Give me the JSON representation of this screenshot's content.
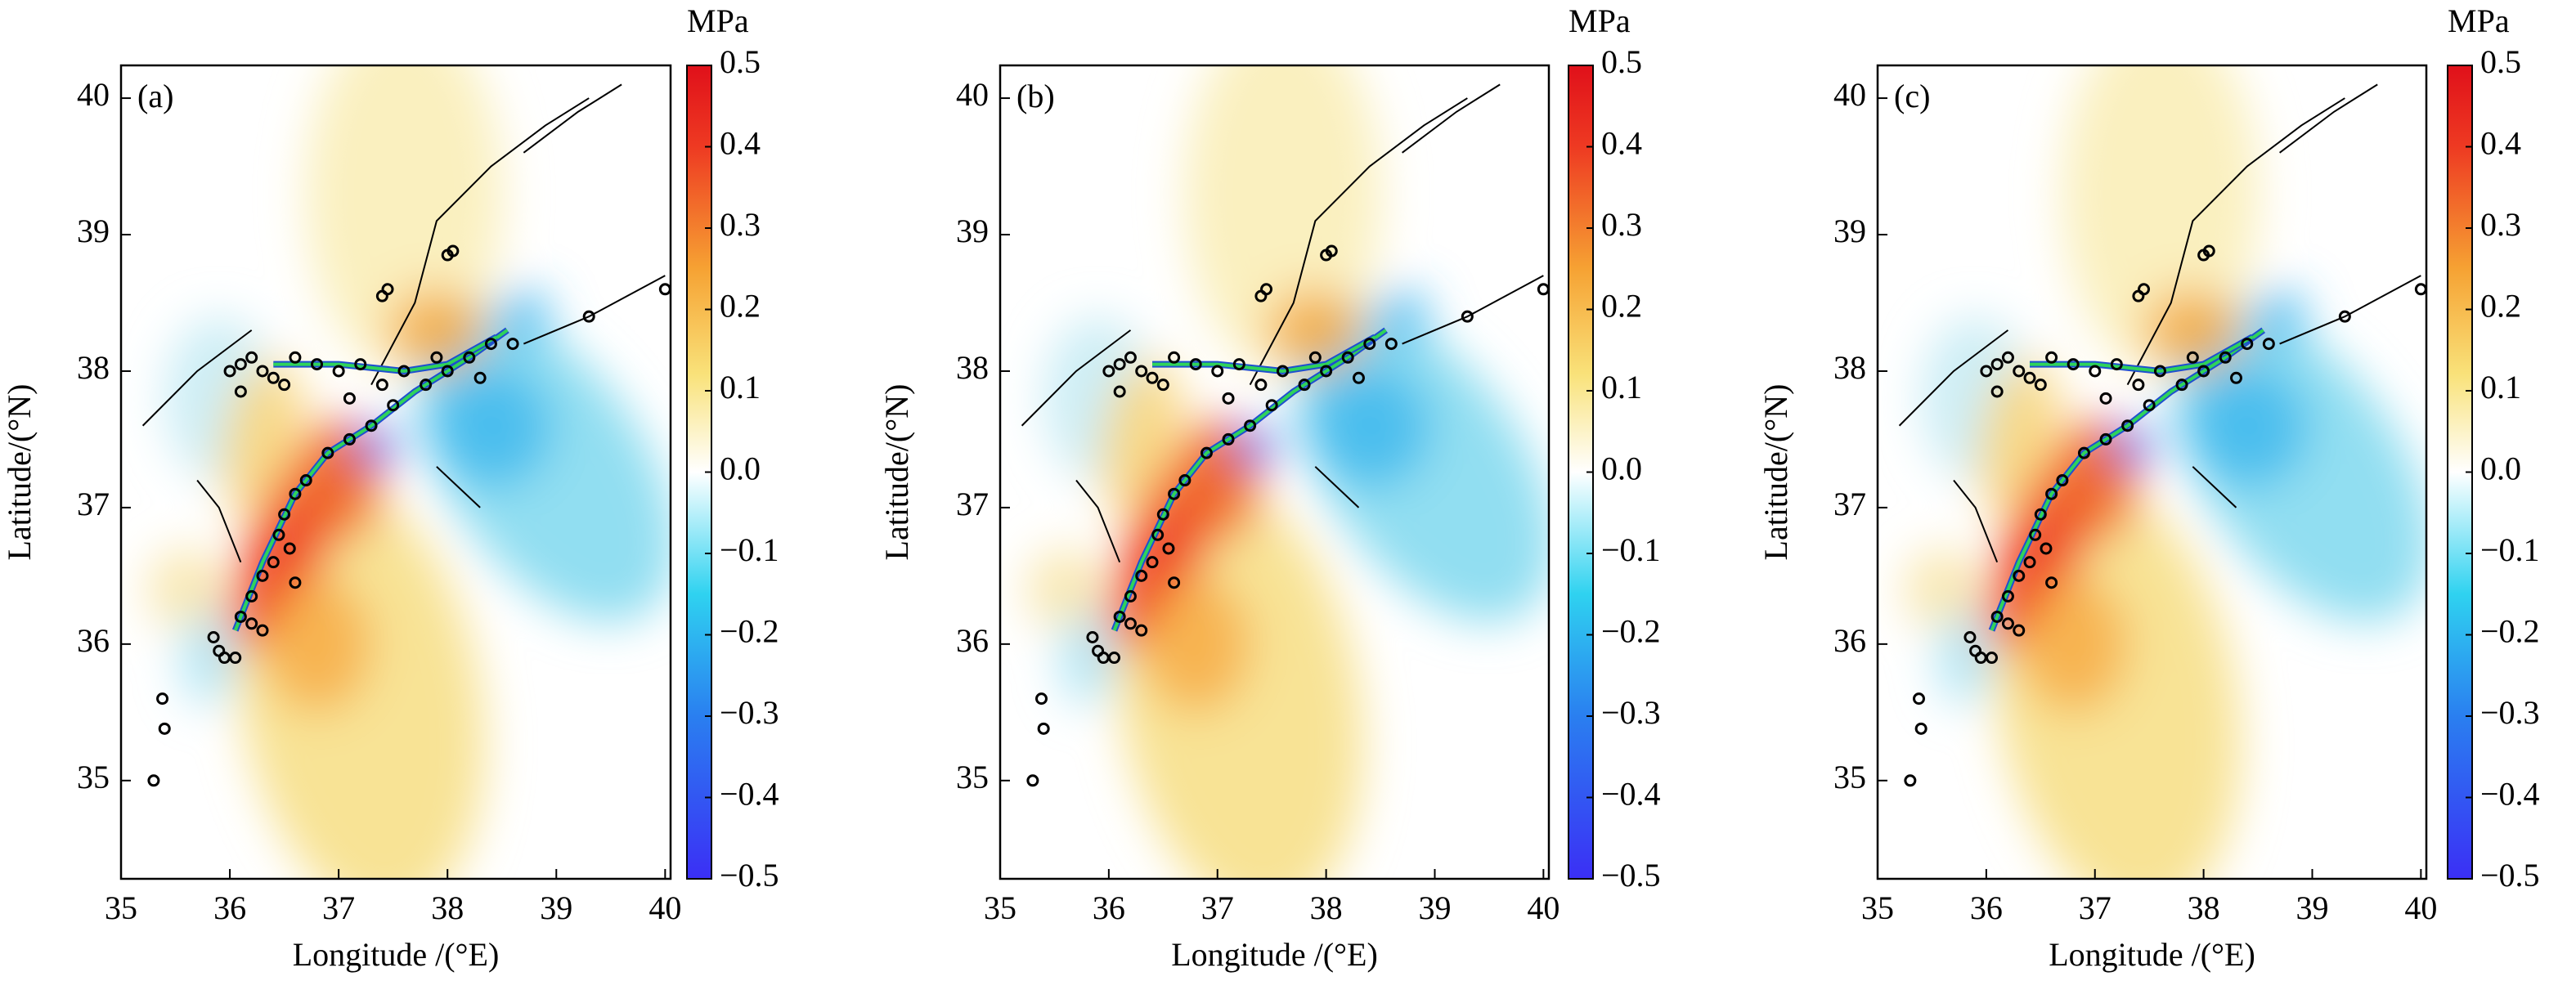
{
  "chart_data": [
    {
      "type": "scatter",
      "panel_label": "(a)",
      "xlabel": "Longitude /(°E)",
      "ylabel": "Latitude/(°N)",
      "xlim": [
        35,
        40.05
      ],
      "ylim": [
        34.28,
        40.24
      ],
      "xticks": [
        35,
        36,
        37,
        38,
        39,
        40
      ],
      "yticks": [
        35,
        36,
        37,
        38,
        39,
        40
      ],
      "marker_color": "#000000",
      "x": [
        35.3,
        35.4,
        35.38,
        35.9,
        35.85,
        36.05,
        36.1,
        36.2,
        36.3,
        36.4,
        36.45,
        36.5,
        36.6,
        36.55,
        36.7,
        36.9,
        37.1,
        37.3,
        37.5,
        37.8,
        38.0,
        38.2,
        38.4,
        38.6,
        38.3,
        36.0,
        36.1,
        36.2,
        36.3,
        36.4,
        36.6,
        36.8,
        37.0,
        37.2,
        37.4,
        37.6,
        37.9,
        38.0,
        38.05,
        37.45,
        37.4,
        39.3,
        40.0,
        36.2,
        36.3,
        36.6,
        35.95,
        36.1,
        36.5,
        37.1
      ],
      "y": [
        35.0,
        35.38,
        35.6,
        35.95,
        36.05,
        35.9,
        36.2,
        36.35,
        36.5,
        36.6,
        36.8,
        36.95,
        37.1,
        36.7,
        37.2,
        37.4,
        37.5,
        37.6,
        37.75,
        37.9,
        38.0,
        38.1,
        38.2,
        38.2,
        37.95,
        38.0,
        38.05,
        38.1,
        38.0,
        37.95,
        38.1,
        38.05,
        38.0,
        38.05,
        37.9,
        38.0,
        38.1,
        38.85,
        38.88,
        38.6,
        38.55,
        38.4,
        38.6,
        36.15,
        36.1,
        36.45,
        35.9,
        37.85,
        37.9,
        37.8
      ],
      "colorbar": {
        "label": "MPa",
        "lim": [
          -0.5,
          0.5
        ],
        "ticks": [
          0.5,
          0.4,
          0.3,
          0.2,
          0.1,
          {
            "value": 0,
            "label": "0.0"
          },
          {
            "value": -0.1,
            "label": "−0.1"
          },
          {
            "value": -0.2,
            "label": "−0.2"
          },
          {
            "value": -0.3,
            "label": "−0.3"
          },
          {
            "value": -0.4,
            "label": "−0.4"
          },
          {
            "value": -0.5,
            "label": "−0.5"
          }
        ]
      }
    },
    {
      "type": "scatter",
      "panel_label": "(b)",
      "xlabel": "Longitude /(°E)",
      "ylabel": "Latitude/(°N)",
      "xlim": [
        35,
        40.05
      ],
      "ylim": [
        34.28,
        40.24
      ],
      "xticks": [
        35,
        36,
        37,
        38,
        39,
        40
      ],
      "yticks": [
        35,
        36,
        37,
        38,
        39,
        40
      ],
      "marker_color": "#000000",
      "x": [
        35.3,
        35.4,
        35.38,
        35.9,
        35.85,
        36.05,
        36.1,
        36.2,
        36.3,
        36.4,
        36.45,
        36.5,
        36.6,
        36.55,
        36.7,
        36.9,
        37.1,
        37.3,
        37.5,
        37.8,
        38.0,
        38.2,
        38.4,
        38.6,
        38.3,
        36.0,
        36.1,
        36.2,
        36.3,
        36.4,
        36.6,
        36.8,
        37.0,
        37.2,
        37.4,
        37.6,
        37.9,
        38.0,
        38.05,
        37.45,
        37.4,
        39.3,
        40.0,
        36.2,
        36.3,
        36.6,
        35.95,
        36.1,
        36.5,
        37.1
      ],
      "y": [
        35.0,
        35.38,
        35.6,
        35.95,
        36.05,
        35.9,
        36.2,
        36.35,
        36.5,
        36.6,
        36.8,
        36.95,
        37.1,
        36.7,
        37.2,
        37.4,
        37.5,
        37.6,
        37.75,
        37.9,
        38.0,
        38.1,
        38.2,
        38.2,
        37.95,
        38.0,
        38.05,
        38.1,
        38.0,
        37.95,
        38.1,
        38.05,
        38.0,
        38.05,
        37.9,
        38.0,
        38.1,
        38.85,
        38.88,
        38.6,
        38.55,
        38.4,
        38.6,
        36.15,
        36.1,
        36.45,
        35.9,
        37.85,
        37.9,
        37.8
      ],
      "colorbar": {
        "label": "MPa",
        "lim": [
          -0.5,
          0.5
        ],
        "ticks": [
          0.5,
          0.4,
          0.3,
          0.2,
          0.1,
          {
            "value": 0,
            "label": "0.0"
          },
          {
            "value": -0.1,
            "label": "−0.1"
          },
          {
            "value": -0.2,
            "label": "−0.2"
          },
          {
            "value": -0.3,
            "label": "−0.3"
          },
          {
            "value": -0.4,
            "label": "−0.4"
          },
          {
            "value": -0.5,
            "label": "−0.5"
          }
        ]
      }
    },
    {
      "type": "scatter",
      "panel_label": "(c)",
      "xlabel": "Longitude /(°E)",
      "ylabel": "Latitude/(°N)",
      "xlim": [
        35,
        40.05
      ],
      "ylim": [
        34.28,
        40.24
      ],
      "xticks": [
        35,
        36,
        37,
        38,
        39,
        40
      ],
      "yticks": [
        35,
        36,
        37,
        38,
        39,
        40
      ],
      "marker_color": "#000000",
      "x": [
        35.3,
        35.4,
        35.38,
        35.9,
        35.85,
        36.05,
        36.1,
        36.2,
        36.3,
        36.4,
        36.45,
        36.5,
        36.6,
        36.55,
        36.7,
        36.9,
        37.1,
        37.3,
        37.5,
        37.8,
        38.0,
        38.2,
        38.4,
        38.6,
        38.3,
        36.0,
        36.1,
        36.2,
        36.3,
        36.4,
        36.6,
        36.8,
        37.0,
        37.2,
        37.4,
        37.6,
        37.9,
        38.0,
        38.05,
        37.45,
        37.4,
        39.3,
        40.0,
        36.2,
        36.3,
        36.6,
        35.95,
        36.1,
        36.5,
        37.1
      ],
      "y": [
        35.0,
        35.38,
        35.6,
        35.95,
        36.05,
        35.9,
        36.2,
        36.35,
        36.5,
        36.6,
        36.8,
        36.95,
        37.1,
        36.7,
        37.2,
        37.4,
        37.5,
        37.6,
        37.75,
        37.9,
        38.0,
        38.1,
        38.2,
        38.2,
        37.95,
        38.0,
        38.05,
        38.1,
        38.0,
        37.95,
        38.1,
        38.05,
        38.0,
        38.05,
        37.9,
        38.0,
        38.1,
        38.85,
        38.88,
        38.6,
        38.55,
        38.4,
        38.6,
        36.15,
        36.1,
        36.45,
        35.9,
        37.85,
        37.9,
        37.8
      ],
      "colorbar": {
        "label": "MPa",
        "lim": [
          -0.5,
          0.5
        ],
        "ticks": [
          0.5,
          0.4,
          0.3,
          0.2,
          0.1,
          {
            "value": 0,
            "label": "0.0"
          },
          {
            "value": -0.1,
            "label": "−0.1"
          },
          {
            "value": -0.2,
            "label": "−0.2"
          },
          {
            "value": -0.3,
            "label": "−0.3"
          },
          {
            "value": -0.4,
            "label": "−0.4"
          },
          {
            "value": -0.5,
            "label": "−0.5"
          }
        ]
      }
    }
  ]
}
